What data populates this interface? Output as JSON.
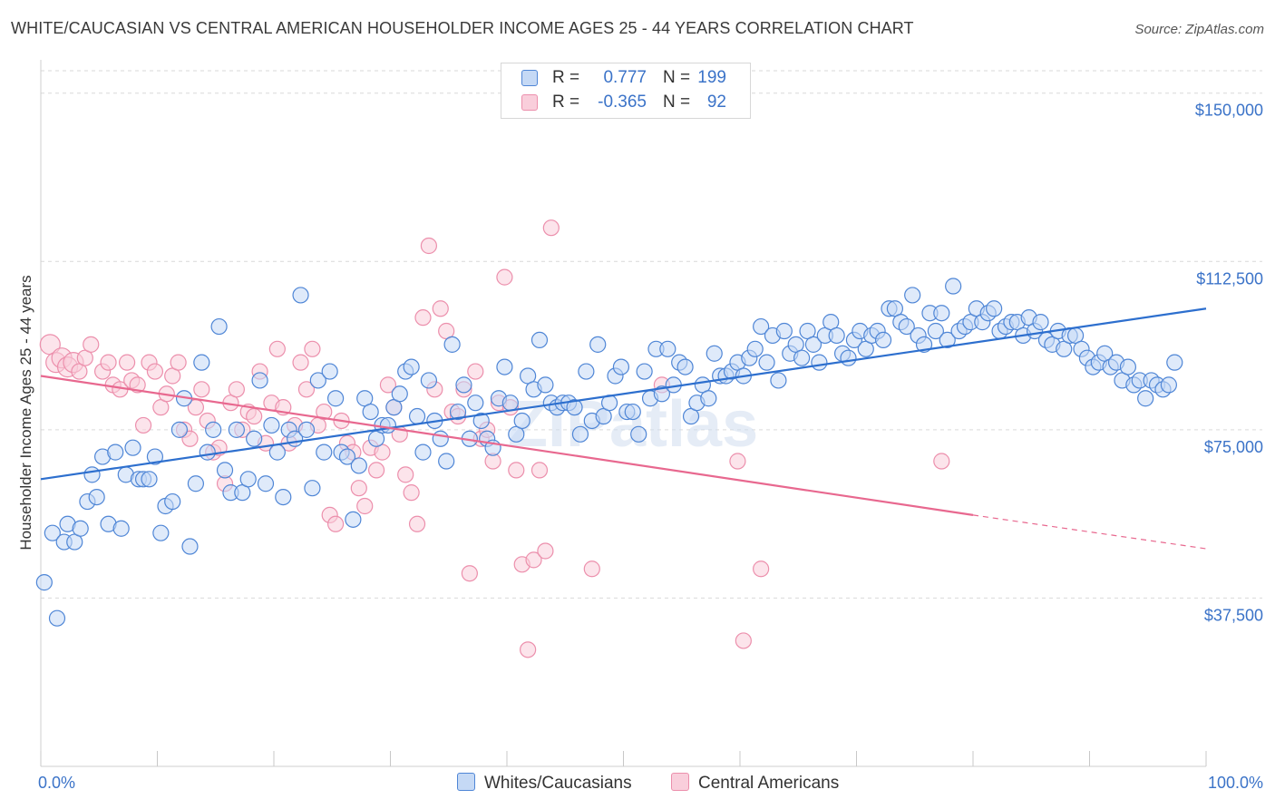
{
  "header": {
    "title": "WHITE/CAUCASIAN VS CENTRAL AMERICAN HOUSEHOLDER INCOME AGES 25 - 44 YEARS CORRELATION CHART",
    "source": "Source: ZipAtlas.com"
  },
  "watermark": "ZIPatlas",
  "legend": {
    "rows": [
      {
        "r_label": "R =",
        "r_value": "0.777",
        "n_label": "N =",
        "n_value": "199"
      },
      {
        "r_label": "R =",
        "r_value": "-0.365",
        "n_label": "N =",
        "n_value": "92"
      }
    ]
  },
  "bottom_legend": {
    "items": [
      "Whites/Caucasians",
      "Central Americans"
    ]
  },
  "colors": {
    "blue_fill": "#c5d9f5",
    "blue_stroke": "#4f86d6",
    "blue_line": "#2d6fce",
    "pink_fill": "#f9cedb",
    "pink_stroke": "#ec8fac",
    "pink_line": "#e8688f",
    "tick_text": "#3b73c8",
    "grid": "#d9d9d9"
  },
  "chart_data": {
    "type": "scatter",
    "title": "WHITE/CAUCASIAN VS CENTRAL AMERICAN HOUSEHOLDER INCOME AGES 25 - 44 YEARS CORRELATION CHART",
    "xlabel": "",
    "ylabel": "Householder Income Ages 25 - 44 years",
    "xlim": [
      0,
      100
    ],
    "ylim": [
      0,
      155000
    ],
    "x_tick_labels": [
      "0.0%",
      "100.0%"
    ],
    "y_ticks": [
      37500,
      75000,
      112500,
      150000
    ],
    "y_tick_labels": [
      "$37,500",
      "$75,000",
      "$112,500",
      "$150,000"
    ],
    "grid": true,
    "legend_position": "top-center",
    "series": [
      {
        "name": "Whites/Caucasians",
        "r": 0.777,
        "n": 199,
        "trend": {
          "x0": 0,
          "y0": 64000,
          "x1": 100,
          "y1": 102000
        },
        "points": [
          [
            0.3,
            41000
          ],
          [
            1,
            52000
          ],
          [
            1.4,
            33000
          ],
          [
            2,
            50000
          ],
          [
            2.3,
            54000
          ],
          [
            2.9,
            50000
          ],
          [
            3.4,
            53000
          ],
          [
            4,
            59000
          ],
          [
            4.4,
            65000
          ],
          [
            4.8,
            60000
          ],
          [
            5.3,
            69000
          ],
          [
            5.8,
            54000
          ],
          [
            6.4,
            70000
          ],
          [
            6.9,
            53000
          ],
          [
            7.3,
            65000
          ],
          [
            7.9,
            71000
          ],
          [
            8.4,
            64000
          ],
          [
            8.8,
            64000
          ],
          [
            9.3,
            64000
          ],
          [
            9.8,
            69000
          ],
          [
            10.3,
            52000
          ],
          [
            10.7,
            58000
          ],
          [
            11.3,
            59000
          ],
          [
            11.9,
            75000
          ],
          [
            12.3,
            82000
          ],
          [
            12.8,
            49000
          ],
          [
            13.3,
            63000
          ],
          [
            13.8,
            90000
          ],
          [
            14.3,
            70000
          ],
          [
            14.8,
            75000
          ],
          [
            15.3,
            98000
          ],
          [
            15.8,
            66000
          ],
          [
            16.3,
            61000
          ],
          [
            16.8,
            75000
          ],
          [
            17.3,
            61000
          ],
          [
            17.8,
            64000
          ],
          [
            18.3,
            73000
          ],
          [
            18.8,
            86000
          ],
          [
            19.3,
            63000
          ],
          [
            19.8,
            76000
          ],
          [
            20.3,
            70000
          ],
          [
            20.8,
            60000
          ],
          [
            21.3,
            75000
          ],
          [
            21.8,
            73000
          ],
          [
            22.3,
            105000
          ],
          [
            22.8,
            75000
          ],
          [
            23.3,
            62000
          ],
          [
            23.8,
            86000
          ],
          [
            24.3,
            70000
          ],
          [
            24.8,
            88000
          ],
          [
            25.3,
            82000
          ],
          [
            25.8,
            70000
          ],
          [
            26.3,
            69000
          ],
          [
            26.8,
            55000
          ],
          [
            27.3,
            67000
          ],
          [
            27.8,
            82000
          ],
          [
            28.3,
            79000
          ],
          [
            28.8,
            73000
          ],
          [
            29.3,
            76000
          ],
          [
            29.8,
            76000
          ],
          [
            30.3,
            80000
          ],
          [
            30.8,
            83000
          ],
          [
            31.3,
            88000
          ],
          [
            31.8,
            89000
          ],
          [
            32.3,
            78000
          ],
          [
            32.8,
            70000
          ],
          [
            33.3,
            86000
          ],
          [
            33.8,
            77000
          ],
          [
            34.3,
            73000
          ],
          [
            34.8,
            68000
          ],
          [
            35.3,
            94000
          ],
          [
            35.8,
            79000
          ],
          [
            36.3,
            85000
          ],
          [
            36.8,
            73000
          ],
          [
            37.3,
            81000
          ],
          [
            37.8,
            77000
          ],
          [
            38.3,
            73000
          ],
          [
            38.8,
            71000
          ],
          [
            39.3,
            82000
          ],
          [
            39.8,
            89000
          ],
          [
            40.3,
            81000
          ],
          [
            40.8,
            74000
          ],
          [
            41.3,
            77000
          ],
          [
            41.8,
            87000
          ],
          [
            42.3,
            84000
          ],
          [
            42.8,
            95000
          ],
          [
            43.3,
            85000
          ],
          [
            43.8,
            81000
          ],
          [
            44.3,
            80000
          ],
          [
            44.8,
            81000
          ],
          [
            45.3,
            81000
          ],
          [
            45.8,
            80000
          ],
          [
            46.3,
            74000
          ],
          [
            46.8,
            88000
          ],
          [
            47.3,
            77000
          ],
          [
            47.8,
            94000
          ],
          [
            48.3,
            78000
          ],
          [
            48.8,
            81000
          ],
          [
            49.3,
            87000
          ],
          [
            49.8,
            89000
          ],
          [
            50.3,
            79000
          ],
          [
            50.8,
            79000
          ],
          [
            51.3,
            74000
          ],
          [
            51.8,
            88000
          ],
          [
            52.3,
            82000
          ],
          [
            52.8,
            93000
          ],
          [
            53.3,
            83000
          ],
          [
            53.8,
            93000
          ],
          [
            54.3,
            85000
          ],
          [
            54.8,
            90000
          ],
          [
            55.3,
            89000
          ],
          [
            55.8,
            78000
          ],
          [
            56.3,
            81000
          ],
          [
            56.8,
            85000
          ],
          [
            57.3,
            82000
          ],
          [
            57.8,
            92000
          ],
          [
            58.3,
            87000
          ],
          [
            58.8,
            87000
          ],
          [
            59.3,
            88000
          ],
          [
            59.8,
            90000
          ],
          [
            60.3,
            87000
          ],
          [
            60.8,
            91000
          ],
          [
            61.3,
            93000
          ],
          [
            61.8,
            98000
          ],
          [
            62.3,
            90000
          ],
          [
            62.8,
            96000
          ],
          [
            63.3,
            86000
          ],
          [
            63.8,
            97000
          ],
          [
            64.3,
            92000
          ],
          [
            64.8,
            94000
          ],
          [
            65.3,
            91000
          ],
          [
            65.8,
            97000
          ],
          [
            66.3,
            94000
          ],
          [
            66.8,
            90000
          ],
          [
            67.3,
            96000
          ],
          [
            67.8,
            99000
          ],
          [
            68.3,
            96000
          ],
          [
            68.8,
            92000
          ],
          [
            69.3,
            91000
          ],
          [
            69.8,
            95000
          ],
          [
            70.3,
            97000
          ],
          [
            70.8,
            93000
          ],
          [
            71.3,
            96000
          ],
          [
            71.8,
            97000
          ],
          [
            72.3,
            95000
          ],
          [
            72.8,
            102000
          ],
          [
            73.3,
            102000
          ],
          [
            73.8,
            99000
          ],
          [
            74.3,
            98000
          ],
          [
            74.8,
            105000
          ],
          [
            75.3,
            96000
          ],
          [
            75.8,
            94000
          ],
          [
            76.3,
            101000
          ],
          [
            76.8,
            97000
          ],
          [
            77.3,
            101000
          ],
          [
            77.8,
            95000
          ],
          [
            78.3,
            107000
          ],
          [
            78.8,
            97000
          ],
          [
            79.3,
            98000
          ],
          [
            79.8,
            99000
          ],
          [
            80.3,
            102000
          ],
          [
            80.8,
            99000
          ],
          [
            81.3,
            101000
          ],
          [
            81.8,
            102000
          ],
          [
            82.3,
            97000
          ],
          [
            82.8,
            98000
          ],
          [
            83.3,
            99000
          ],
          [
            83.8,
            99000
          ],
          [
            84.3,
            96000
          ],
          [
            84.8,
            100000
          ],
          [
            85.3,
            97000
          ],
          [
            85.8,
            99000
          ],
          [
            86.3,
            95000
          ],
          [
            86.8,
            94000
          ],
          [
            87.3,
            97000
          ],
          [
            87.8,
            93000
          ],
          [
            88.3,
            96000
          ],
          [
            88.8,
            96000
          ],
          [
            89.3,
            93000
          ],
          [
            89.8,
            91000
          ],
          [
            90.3,
            89000
          ],
          [
            90.8,
            90000
          ],
          [
            91.3,
            92000
          ],
          [
            91.8,
            89000
          ],
          [
            92.3,
            90000
          ],
          [
            92.8,
            86000
          ],
          [
            93.3,
            89000
          ],
          [
            93.8,
            85000
          ],
          [
            94.3,
            86000
          ],
          [
            94.8,
            82000
          ],
          [
            95.3,
            86000
          ],
          [
            95.8,
            85000
          ],
          [
            96.3,
            84000
          ],
          [
            96.8,
            85000
          ],
          [
            97.3,
            90000
          ]
        ]
      },
      {
        "name": "Central Americans",
        "r": -0.365,
        "n": 92,
        "trend": {
          "x0": 0,
          "y0": 87000,
          "x1": 80,
          "y1": 56000
        },
        "trend_dashed": {
          "x0": 80,
          "y0": 56000,
          "x1": 100,
          "y1": 48500
        },
        "points": [
          [
            0.8,
            94000
          ],
          [
            1.3,
            90000
          ],
          [
            1.8,
            91000
          ],
          [
            2.3,
            89000
          ],
          [
            2.8,
            90000
          ],
          [
            3.3,
            88000
          ],
          [
            3.8,
            91000
          ],
          [
            4.3,
            94000
          ],
          [
            5.3,
            88000
          ],
          [
            5.8,
            90000
          ],
          [
            6.2,
            85000
          ],
          [
            6.8,
            84000
          ],
          [
            7.4,
            90000
          ],
          [
            7.8,
            86000
          ],
          [
            8.3,
            85000
          ],
          [
            8.8,
            76000
          ],
          [
            9.3,
            90000
          ],
          [
            9.8,
            88000
          ],
          [
            10.3,
            80000
          ],
          [
            10.8,
            83000
          ],
          [
            11.3,
            87000
          ],
          [
            11.8,
            90000
          ],
          [
            12.3,
            75000
          ],
          [
            12.8,
            73000
          ],
          [
            13.3,
            80000
          ],
          [
            13.8,
            84000
          ],
          [
            14.3,
            77000
          ],
          [
            14.8,
            70000
          ],
          [
            15.3,
            71000
          ],
          [
            15.8,
            63000
          ],
          [
            16.3,
            81000
          ],
          [
            16.8,
            84000
          ],
          [
            17.3,
            75000
          ],
          [
            17.8,
            79000
          ],
          [
            18.3,
            78000
          ],
          [
            18.8,
            88000
          ],
          [
            19.3,
            72000
          ],
          [
            19.8,
            81000
          ],
          [
            20.3,
            93000
          ],
          [
            20.8,
            80000
          ],
          [
            21.3,
            72000
          ],
          [
            21.8,
            76000
          ],
          [
            22.3,
            90000
          ],
          [
            22.8,
            84000
          ],
          [
            23.3,
            93000
          ],
          [
            23.8,
            76000
          ],
          [
            24.3,
            79000
          ],
          [
            24.8,
            56000
          ],
          [
            25.3,
            54000
          ],
          [
            25.8,
            77000
          ],
          [
            26.3,
            72000
          ],
          [
            26.8,
            70000
          ],
          [
            27.3,
            62000
          ],
          [
            27.8,
            58000
          ],
          [
            28.3,
            71000
          ],
          [
            28.8,
            66000
          ],
          [
            29.3,
            70000
          ],
          [
            29.8,
            85000
          ],
          [
            30.3,
            80000
          ],
          [
            30.8,
            74000
          ],
          [
            31.3,
            65000
          ],
          [
            31.8,
            61000
          ],
          [
            32.3,
            54000
          ],
          [
            32.8,
            100000
          ],
          [
            33.3,
            116000
          ],
          [
            33.8,
            84000
          ],
          [
            34.3,
            102000
          ],
          [
            34.8,
            97000
          ],
          [
            35.3,
            79000
          ],
          [
            35.8,
            78000
          ],
          [
            36.3,
            84000
          ],
          [
            36.8,
            43000
          ],
          [
            37.3,
            88000
          ],
          [
            37.8,
            73000
          ],
          [
            38.3,
            75000
          ],
          [
            38.8,
            68000
          ],
          [
            39.3,
            81000
          ],
          [
            39.8,
            109000
          ],
          [
            40.3,
            80000
          ],
          [
            40.8,
            66000
          ],
          [
            41.3,
            45000
          ],
          [
            41.8,
            26000
          ],
          [
            42.3,
            46000
          ],
          [
            42.8,
            66000
          ],
          [
            43.3,
            48000
          ],
          [
            43.8,
            120000
          ],
          [
            47.3,
            44000
          ],
          [
            53.3,
            85000
          ],
          [
            59.8,
            68000
          ],
          [
            60.3,
            28000
          ],
          [
            61.8,
            44000
          ],
          [
            77.3,
            68000
          ]
        ]
      }
    ]
  }
}
